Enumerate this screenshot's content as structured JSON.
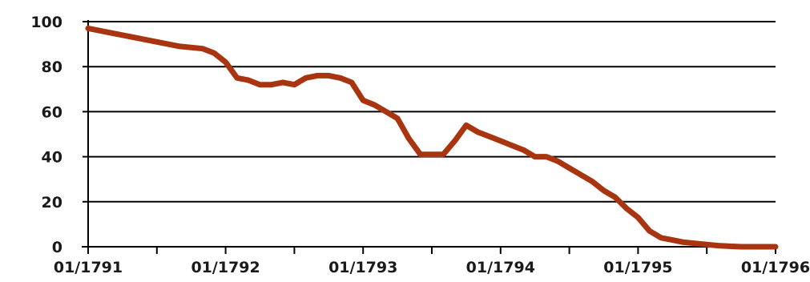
{
  "chart_data": {
    "type": "line",
    "title": "",
    "xlabel": "",
    "ylabel": "",
    "ylim": [
      0,
      100
    ],
    "yticks": [
      0,
      20,
      40,
      60,
      80,
      100
    ],
    "xlim": [
      "01/1791",
      "01/1796"
    ],
    "xtick_labels": [
      "01/1791",
      "01/1792",
      "01/1793",
      "01/1794",
      "01/1795",
      "01/1796"
    ],
    "grid": true,
    "legend": "none",
    "line_color": "#a8350f",
    "series": [
      {
        "x": [
          "01/1791",
          "03/1791",
          "05/1791",
          "07/1791",
          "09/1791",
          "11/1791",
          "12/1791",
          "01/1792",
          "02/1792",
          "03/1792",
          "04/1792",
          "05/1792",
          "06/1792",
          "07/1792",
          "08/1792",
          "09/1792",
          "10/1792",
          "11/1792",
          "12/1792",
          "01/1793",
          "02/1793",
          "03/1793",
          "04/1793",
          "05/1793",
          "06/1793",
          "07/1793",
          "08/1793",
          "09/1793",
          "10/1793",
          "11/1793",
          "12/1793",
          "01/1794",
          "02/1794",
          "03/1794",
          "04/1794",
          "05/1794",
          "06/1794",
          "07/1794",
          "08/1794",
          "09/1794",
          "10/1794",
          "11/1794",
          "12/1794",
          "01/1795",
          "02/1795",
          "03/1795",
          "04/1795",
          "05/1795",
          "06/1795",
          "07/1795",
          "08/1795",
          "09/1795",
          "10/1795",
          "11/1795",
          "12/1795",
          "01/1796"
        ],
        "y": [
          97,
          95,
          93,
          91,
          89,
          88,
          86,
          82,
          75,
          74,
          72,
          72,
          73,
          72,
          75,
          76,
          76,
          75,
          73,
          65,
          63,
          60,
          57,
          48,
          41,
          41,
          41,
          47,
          54,
          51,
          49,
          47,
          45,
          43,
          40,
          40,
          38,
          35,
          32,
          29,
          25,
          22,
          17,
          13,
          7,
          4,
          3,
          2,
          1.5,
          1,
          0.5,
          0.2,
          0,
          0,
          0,
          0
        ]
      }
    ]
  }
}
